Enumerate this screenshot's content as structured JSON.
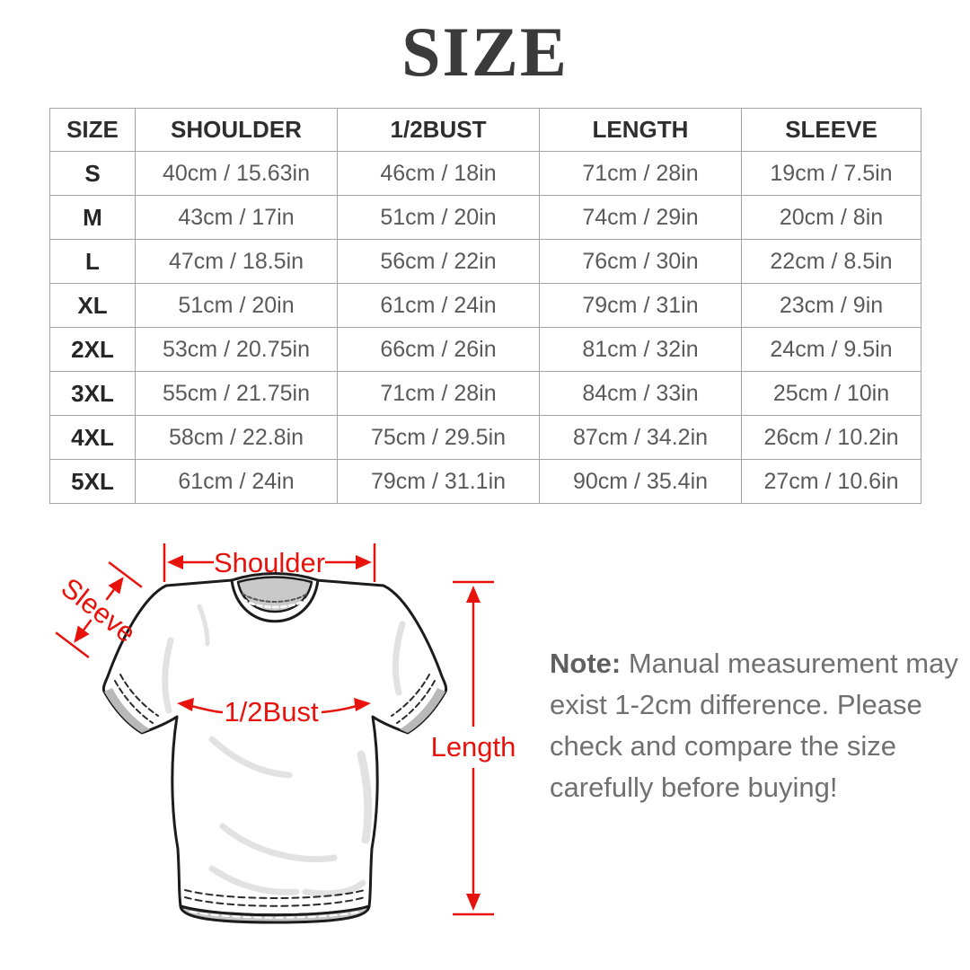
{
  "title": "SIZE",
  "table": {
    "headers": [
      "SIZE",
      "SHOULDER",
      "1/2BUST",
      "LENGTH",
      "SLEEVE"
    ],
    "rows": [
      [
        "S",
        "40cm / 15.63in",
        "46cm / 18in",
        "71cm / 28in",
        "19cm / 7.5in"
      ],
      [
        "M",
        "43cm / 17in",
        "51cm / 20in",
        "74cm / 29in",
        "20cm / 8in"
      ],
      [
        "L",
        "47cm / 18.5in",
        "56cm / 22in",
        "76cm / 30in",
        "22cm / 8.5in"
      ],
      [
        "XL",
        "51cm / 20in",
        "61cm / 24in",
        "79cm / 31in",
        "23cm / 9in"
      ],
      [
        "2XL",
        "53cm / 20.75in",
        "66cm / 26in",
        "81cm / 32in",
        "24cm / 9.5in"
      ],
      [
        "3XL",
        "55cm / 21.75in",
        "71cm / 28in",
        "84cm / 33in",
        "25cm / 10in"
      ],
      [
        "4XL",
        "58cm / 22.8in",
        "75cm / 29.5in",
        "87cm / 34.2in",
        "26cm / 10.2in"
      ],
      [
        "5XL",
        "61cm / 24in",
        "79cm / 31.1in",
        "90cm / 35.4in",
        "27cm / 10.6in"
      ]
    ]
  },
  "diagram": {
    "shoulder_label": "Shoulder",
    "sleeve_label": "Sleeve",
    "half_bust_label": "1/2Bust",
    "length_label": "Length",
    "accent_color": "#e8120c"
  },
  "note": {
    "label": "Note:",
    "lines": [
      "Manual measurement may",
      "exist 1-2cm difference. Please",
      "check and compare the size",
      "carefully before buying!"
    ]
  },
  "colors": {
    "title_text": "#3b3b3b",
    "header_text": "#2e2e2e",
    "data_text": "#5a5a5a",
    "table_border": "#a3a3a3",
    "note_text": "#707070",
    "shirt_outline": "#1c1c1c",
    "shirt_shadow": "#c9c9c9"
  }
}
